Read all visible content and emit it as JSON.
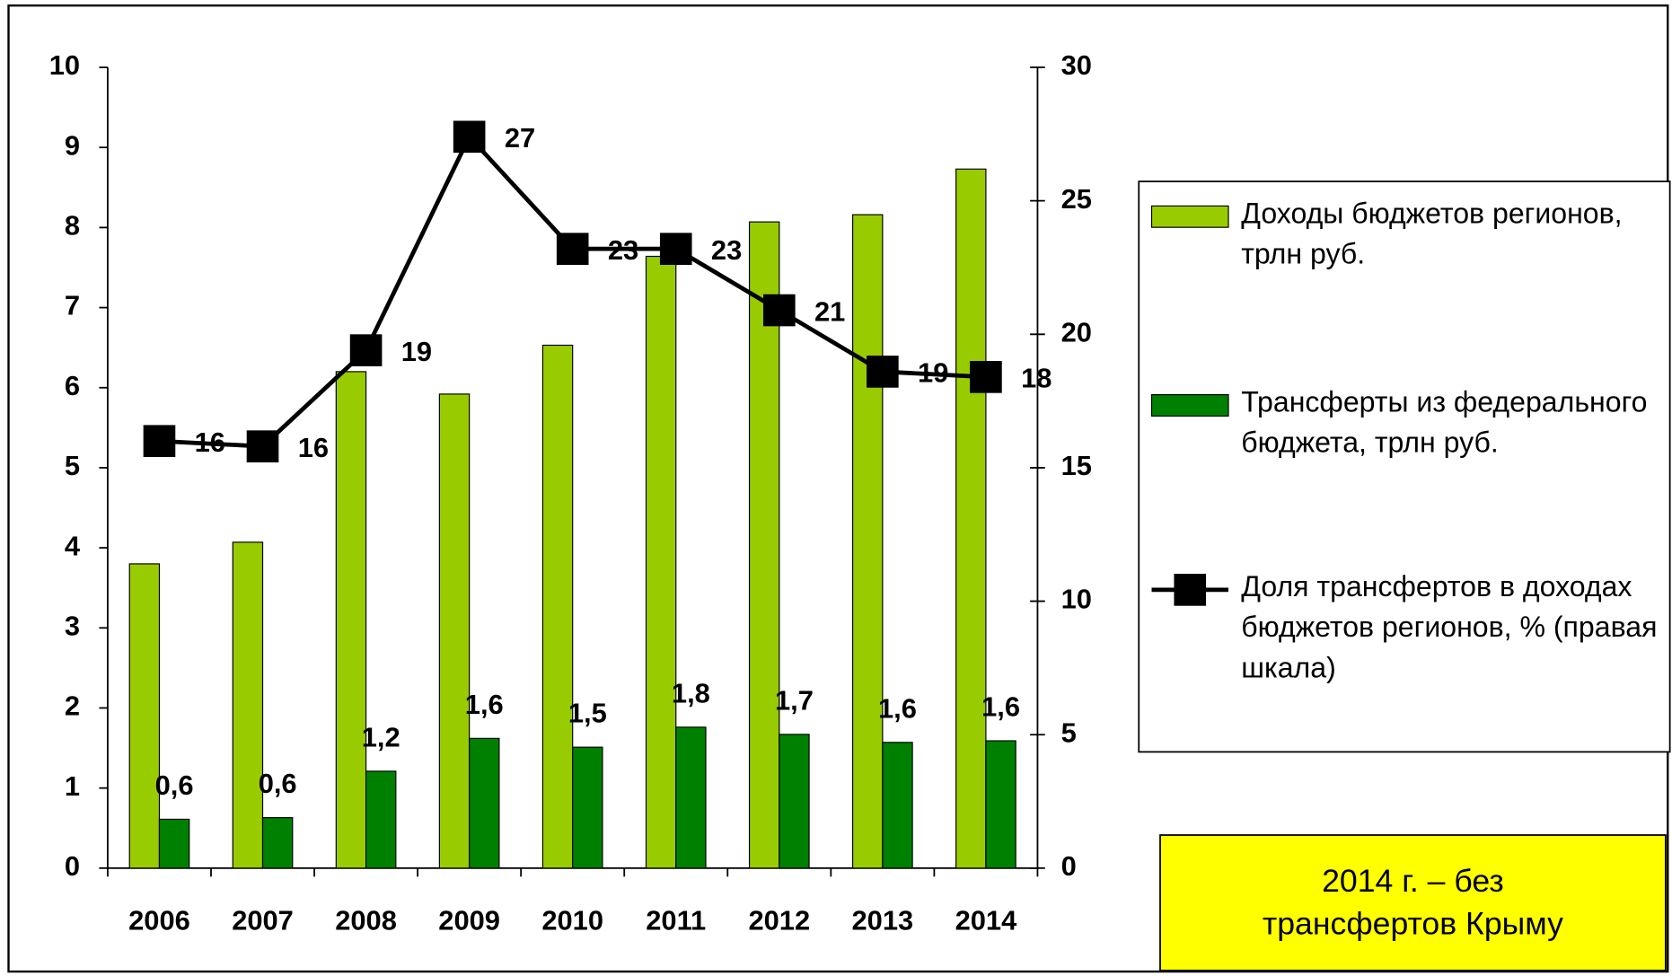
{
  "chart_data": {
    "type": "bar",
    "categories": [
      "2006",
      "2007",
      "2008",
      "2009",
      "2010",
      "2011",
      "2012",
      "2013",
      "2014"
    ],
    "series": [
      {
        "name": "Доходы бюджетов регионов, трлн руб.",
        "type": "bar",
        "color": "#99cc00",
        "values": [
          3.8,
          4.07,
          6.2,
          5.92,
          6.53,
          7.64,
          8.07,
          8.16,
          8.73
        ]
      },
      {
        "name": "Трансферты из федерального бюджета, трлн руб.",
        "type": "bar",
        "color": "#008000",
        "values": [
          0.61,
          0.63,
          1.21,
          1.62,
          1.51,
          1.76,
          1.67,
          1.57,
          1.59
        ],
        "value_labels": [
          "0,6",
          "0,6",
          "1,2",
          "1,6",
          "1,5",
          "1,8",
          "1,7",
          "1,6",
          "1,6"
        ]
      },
      {
        "name": "Доля трансфертов в доходах бюджетов регионов, % (правая шкала)",
        "type": "line",
        "axis": "y2",
        "color": "#000000",
        "values": [
          16.0,
          15.8,
          19.4,
          27.4,
          23.2,
          23.2,
          20.9,
          18.6,
          18.4
        ],
        "value_labels": [
          "16",
          "16",
          "19",
          "27",
          "23",
          "23",
          "21",
          "19",
          "18"
        ]
      }
    ],
    "ylim": [
      0,
      10
    ],
    "yticks": [
      0,
      1,
      2,
      3,
      4,
      5,
      6,
      7,
      8,
      9,
      10
    ],
    "y2lim": [
      0,
      30
    ],
    "y2ticks": [
      0,
      5,
      10,
      15,
      20,
      25,
      30
    ],
    "legend": "right",
    "annotation": "2014 г. – без трансфертов Крыму"
  }
}
